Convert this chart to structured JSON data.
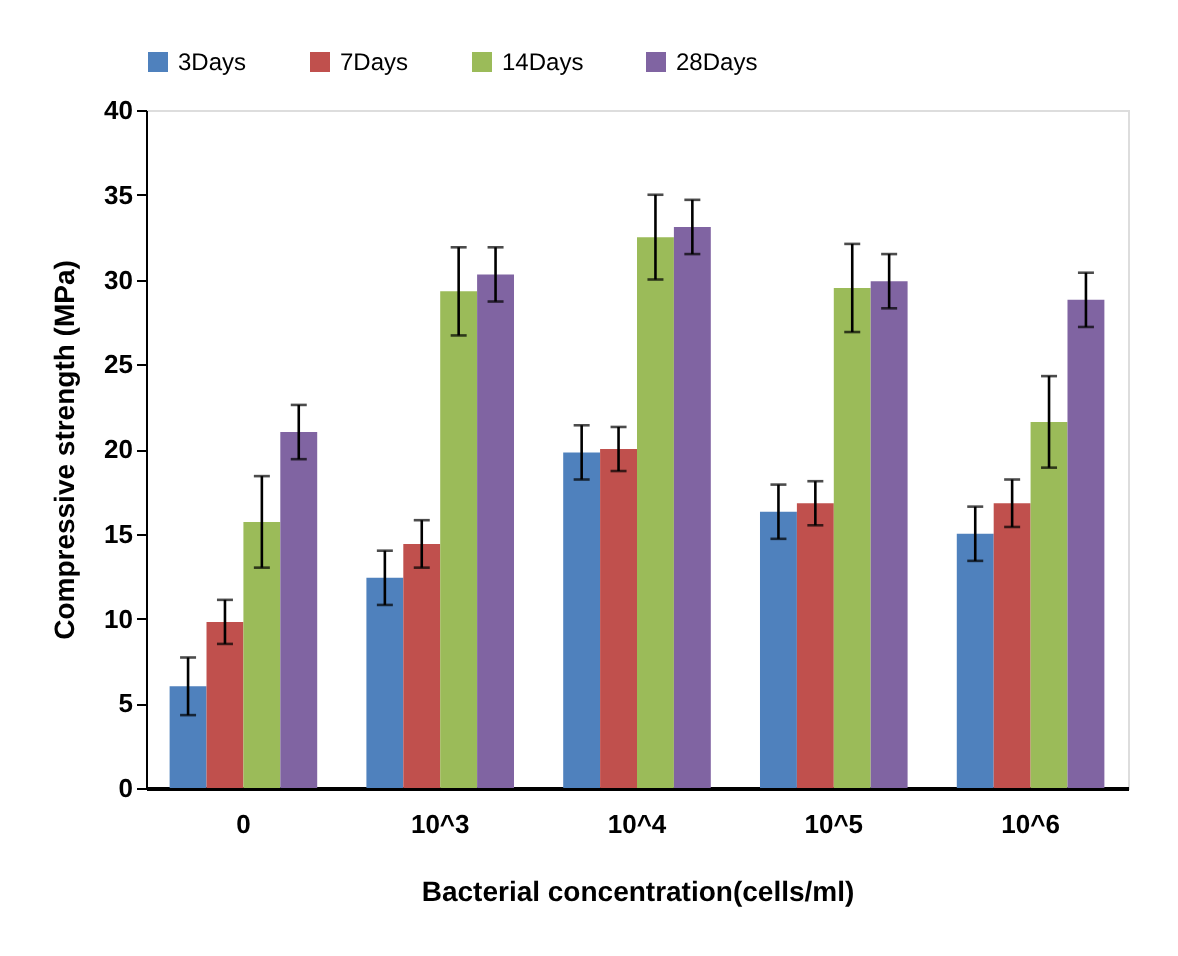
{
  "chart_data": {
    "type": "bar",
    "xlabel": "Bacterial concentration(cells/ml)",
    "ylabel": "Compressive strength (MPa)",
    "categories": [
      "0",
      "10^3",
      "10^4",
      "10^5",
      "10^6"
    ],
    "series": [
      {
        "name": "3Days",
        "color": "#4f81bd",
        "values": [
          6.0,
          12.4,
          19.8,
          16.3,
          15.0
        ],
        "errors": [
          1.7,
          1.6,
          1.6,
          1.6,
          1.6
        ]
      },
      {
        "name": "7Days",
        "color": "#c0504d",
        "values": [
          9.8,
          14.4,
          20.0,
          16.8,
          16.8
        ],
        "errors": [
          1.3,
          1.4,
          1.3,
          1.3,
          1.4
        ]
      },
      {
        "name": "14Days",
        "color": "#9bbb59",
        "values": [
          15.7,
          29.3,
          32.5,
          29.5,
          21.6
        ],
        "errors": [
          2.7,
          2.6,
          2.5,
          2.6,
          2.7
        ]
      },
      {
        "name": "28Days",
        "color": "#8064a2",
        "values": [
          21.0,
          30.3,
          33.1,
          29.9,
          28.8
        ],
        "errors": [
          1.6,
          1.6,
          1.6,
          1.6,
          1.6
        ]
      }
    ],
    "ylim": [
      0,
      40
    ],
    "yticks": [
      0,
      5,
      10,
      15,
      20,
      25,
      30,
      35,
      40
    ],
    "grid": false,
    "legend": "top"
  }
}
